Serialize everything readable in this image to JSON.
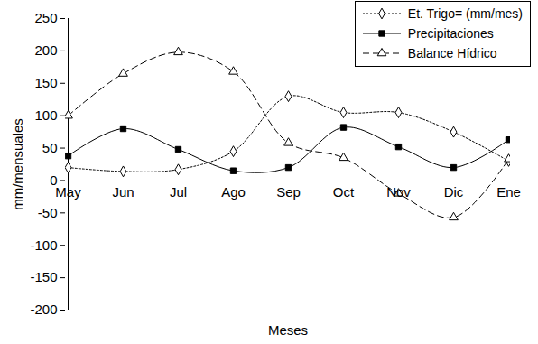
{
  "chart_data": {
    "type": "line",
    "x_label": "Meses",
    "y_label": "mm/mensuales",
    "categories": [
      "May",
      "Jun",
      "Jul",
      "Ago",
      "Sep",
      "Oct",
      "Nov",
      "Dic",
      "Ene"
    ],
    "series": [
      {
        "name": "Et. Trigo= (mm/mes)",
        "color": "#000000",
        "marker": "diamond_open",
        "line_style": "dotted",
        "values": [
          20,
          14,
          17,
          45,
          130,
          105,
          105,
          75,
          30
        ]
      },
      {
        "name": "Precipitaciones",
        "color": "#000000",
        "marker": "square",
        "line_style": "solid",
        "values": [
          38,
          80,
          48,
          15,
          20,
          82,
          52,
          20,
          63
        ]
      },
      {
        "name": "Balance Hídrico",
        "color": "#000000",
        "marker": "triangle_open",
        "line_style": "dashed",
        "values": [
          100,
          165,
          198,
          168,
          58,
          35,
          -20,
          -57,
          33
        ]
      }
    ],
    "ylim": [
      -200,
      250
    ],
    "yticks": [
      -200,
      -150,
      -100,
      -50,
      0,
      50,
      100,
      150,
      200,
      250
    ],
    "grid": false,
    "legend": "top-right"
  }
}
